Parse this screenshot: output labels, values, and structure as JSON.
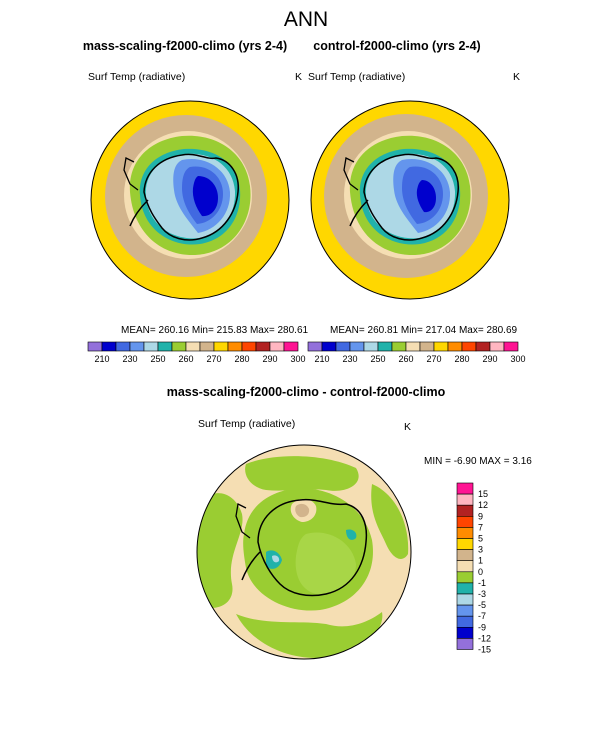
{
  "page": {
    "title": "ANN"
  },
  "colors": {
    "cbar_abs": [
      "#9370db",
      "#0000cd",
      "#4169e1",
      "#6495ed",
      "#add8e6",
      "#20b2aa",
      "#9acd32",
      "#f5deb3",
      "#d2b48c",
      "#ffd700",
      "#ff8c00",
      "#ff4500",
      "#b22222",
      "#ffb6c1",
      "#ff1493"
    ],
    "cbar_diff": [
      "#ff1493",
      "#ffb6c1",
      "#b22222",
      "#ff4500",
      "#ff8c00",
      "#ffd700",
      "#d2b48c",
      "#f5deb3",
      "#9acd32",
      "#20b2aa",
      "#add8e6",
      "#6495ed",
      "#4169e1",
      "#0000cd",
      "#9370db"
    ]
  },
  "chart_data": [
    {
      "type": "heatmap",
      "title": "mass-scaling-f2000-climo (yrs 2-4)",
      "subtitle": "Surf Temp (radiative)",
      "units": "K",
      "stats_text": "MEAN= 260.16  Min= 215.83  Max= 280.61",
      "mean": 260.16,
      "min": 215.83,
      "max": 280.61,
      "colorbar_labels": [
        "210",
        "230",
        "250",
        "260",
        "270",
        "280",
        "290",
        "300"
      ],
      "colorbar_label_slots": [
        1,
        3,
        5,
        7,
        9,
        11,
        13,
        15
      ]
    },
    {
      "type": "heatmap",
      "title": "control-f2000-climo (yrs 2-4)",
      "subtitle": "Surf Temp (radiative)",
      "units": "K",
      "stats_text": "MEAN= 260.81  Min= 217.04  Max= 280.69",
      "mean": 260.81,
      "min": 217.04,
      "max": 280.69,
      "colorbar_labels": [
        "210",
        "230",
        "250",
        "260",
        "270",
        "280",
        "290",
        "300"
      ],
      "colorbar_label_slots": [
        1,
        3,
        5,
        7,
        9,
        11,
        13,
        15
      ]
    },
    {
      "type": "heatmap",
      "title": "mass-scaling-f2000-climo - control-f2000-climo",
      "subtitle": "Surf Temp (radiative)",
      "units": "K",
      "stats_text": "MIN =  -6.90 MAX =   3.16",
      "min": -6.9,
      "max": 3.16,
      "colorbar_labels": [
        "15",
        "12",
        "9",
        "7",
        "5",
        "3",
        "1",
        "0",
        "-1",
        "-3",
        "-5",
        "-7",
        "-9",
        "-12",
        "-15"
      ]
    }
  ]
}
